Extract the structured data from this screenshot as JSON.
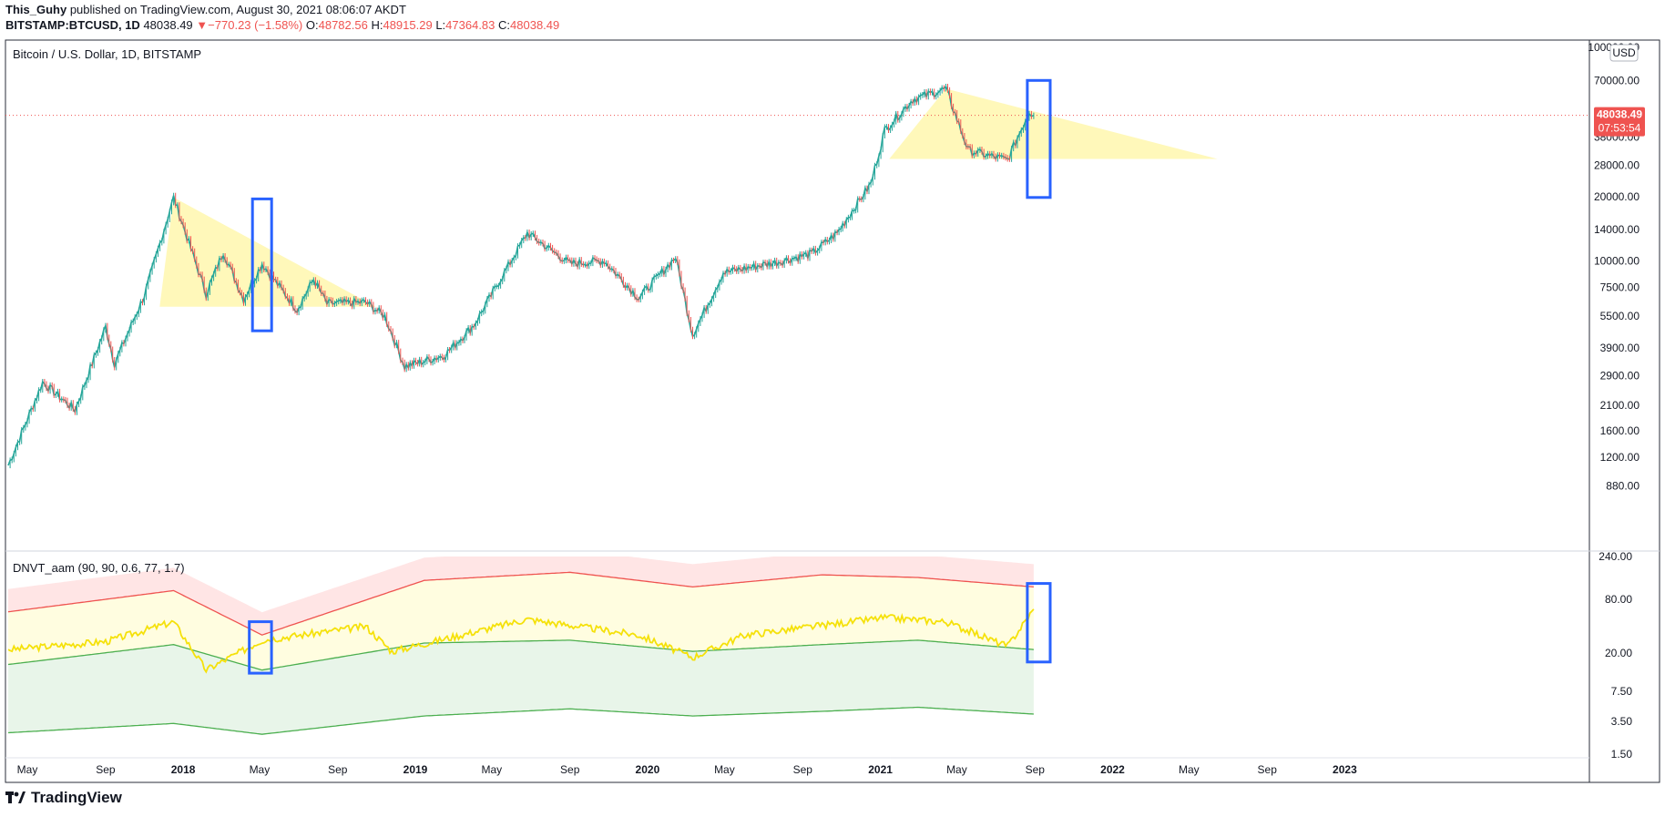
{
  "header": {
    "author": "This_Guhy",
    "published": "published on TradingView.com, August 30, 2021 08:06:07 AKDT",
    "symbol": "BITSTAMP:BTCUSD, 1D",
    "last": "48038.49",
    "change": "−770.23 (−1.58%)",
    "o_label": "O:",
    "o": "48782.56",
    "h_label": "H:",
    "h": "48915.29",
    "l_label": "L:",
    "l": "47364.83",
    "c_label": "C:",
    "c": "48038.49"
  },
  "price_pane": {
    "label": "Bitcoin / U.S. Dollar, 1D, BITSTAMP",
    "currency": "USD",
    "price_tag": "48038.49",
    "countdown": "07:53:54"
  },
  "indicator_pane": {
    "label": "DNVT_aam (90, 90, 0.6, 77, 1.7)"
  },
  "brand": "TradingView",
  "colors": {
    "up": "#26a69a",
    "down": "#ef5350",
    "triangle": "#fff59d",
    "box": "#2962ff",
    "osc": "#f5e10a",
    "upper_band": "#ef5350",
    "lower_band": "#4caf50"
  },
  "chart_data": [
    {
      "type": "line",
      "title": "Bitcoin / U.S. Dollar, 1D, BITSTAMP",
      "y_scale": "log",
      "ylim": [
        700,
        100000
      ],
      "y_ticks": [
        100000,
        70000,
        38000,
        28000,
        20000,
        14000,
        10000,
        7500,
        5500,
        3900,
        2900,
        2100,
        1600,
        1200,
        880
      ],
      "x_ticks": [
        "May",
        "Sep",
        "2018",
        "May",
        "Sep",
        "2019",
        "May",
        "Sep",
        "2020",
        "May",
        "Sep",
        "2021",
        "May",
        "Sep",
        "2022",
        "May",
        "Sep",
        "2023"
      ],
      "series": [
        {
          "x": [
            "2017-04-01",
            "2017-05-25",
            "2017-07-15",
            "2017-09-01",
            "2017-09-15",
            "2017-11-01",
            "2017-12-17",
            "2018-02-06",
            "2018-03-05",
            "2018-04-06",
            "2018-05-05",
            "2018-06-29",
            "2018-07-25",
            "2018-08-15",
            "2018-10-15",
            "2018-11-14",
            "2018-12-15",
            "2019-02-15",
            "2019-04-03",
            "2019-06-26",
            "2019-09-01",
            "2019-10-25",
            "2019-12-18",
            "2020-02-14",
            "2020-03-12",
            "2020-04-29",
            "2020-07-25",
            "2020-09-15",
            "2020-10-25",
            "2020-12-17",
            "2021-01-08",
            "2021-02-21",
            "2021-04-14",
            "2021-05-19",
            "2021-06-22",
            "2021-07-20",
            "2021-08-23",
            "2021-08-30"
          ],
          "y": [
            1100,
            2700,
            2000,
            4900,
            3300,
            6900,
            19800,
            7000,
            11000,
            6600,
            9700,
            5900,
            8200,
            6300,
            6400,
            5500,
            3200,
            3600,
            5000,
            13500,
            9700,
            10000,
            6700,
            10400,
            4500,
            8800,
            9900,
            10800,
            13500,
            23000,
            41000,
            57000,
            64000,
            33000,
            31000,
            29800,
            50000,
            48038
          ]
        }
      ],
      "annotations": [
        {
          "shape": "triangle",
          "points": [
            [
              "2017-12-17",
              19800
            ],
            [
              "2018-10-31",
              6100
            ],
            [
              "2017-11-25",
              6100
            ]
          ]
        },
        {
          "shape": "triangle",
          "points": [
            [
              "2021-04-14",
              64000
            ],
            [
              "2022-06-15",
              30000
            ],
            [
              "2021-01-15",
              30000
            ]
          ]
        },
        {
          "shape": "rectangle",
          "x": [
            "2018-04-20",
            "2018-05-20"
          ],
          "y": [
            4700,
            19500
          ]
        },
        {
          "shape": "rectangle",
          "x": [
            "2021-08-20",
            "2021-09-25"
          ],
          "y": [
            19800,
            70000
          ]
        }
      ]
    },
    {
      "type": "line",
      "title": "DNVT_aam (90, 90, 0.6, 77, 1.7)",
      "y_scale": "log",
      "ylim": [
        1.5,
        240
      ],
      "y_ticks": [
        240,
        80,
        20,
        7.5,
        3.5,
        1.5
      ],
      "series": [
        {
          "name": "oscillator",
          "x": [
            "2017-04-01",
            "2017-09-01",
            "2017-12-17",
            "2018-02-06",
            "2018-05-05",
            "2018-10-15",
            "2018-11-25",
            "2019-06-26",
            "2019-12-18",
            "2020-03-12",
            "2020-06-01",
            "2021-01-08",
            "2021-04-14",
            "2021-07-20",
            "2021-08-30"
          ],
          "y": [
            22,
            27,
            45,
            13,
            28,
            40,
            21,
            48,
            32,
            18,
            32,
            50,
            45,
            24,
            62
          ]
        },
        {
          "name": "upper band",
          "x": [
            "2017-04-01",
            "2017-12-17",
            "2018-05-05",
            "2019-01-15",
            "2019-09-01",
            "2020-03-12",
            "2020-10-01",
            "2021-03-01",
            "2021-08-30"
          ],
          "y": [
            58,
            100,
            32,
            130,
            160,
            110,
            150,
            140,
            110
          ]
        },
        {
          "name": "middle band",
          "x": [
            "2017-04-01",
            "2017-12-17",
            "2018-05-05",
            "2019-01-15",
            "2019-09-01",
            "2020-03-12",
            "2020-10-01",
            "2021-03-01",
            "2021-08-30"
          ],
          "y": [
            15,
            25,
            13,
            26,
            28,
            21,
            25,
            28,
            22
          ]
        },
        {
          "name": "lower band",
          "x": [
            "2017-04-01",
            "2017-12-17",
            "2018-05-05",
            "2019-01-15",
            "2019-09-01",
            "2020-03-12",
            "2020-10-01",
            "2021-03-01",
            "2021-08-30"
          ],
          "y": [
            2.6,
            3.3,
            2.5,
            4.0,
            4.8,
            4.0,
            4.5,
            5.0,
            4.2
          ]
        }
      ],
      "annotations": [
        {
          "shape": "rectangle",
          "x": [
            "2018-04-15",
            "2018-05-20"
          ],
          "y": [
            12,
            45
          ]
        },
        {
          "shape": "rectangle",
          "x": [
            "2021-08-20",
            "2021-09-25"
          ],
          "y": [
            16,
            120
          ]
        }
      ]
    }
  ]
}
